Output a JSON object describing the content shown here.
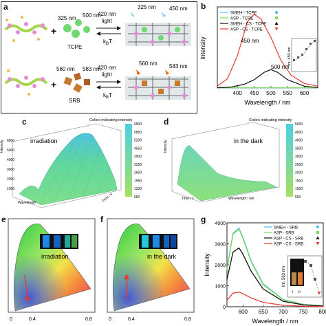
{
  "panels": {
    "a": {
      "letter": "a",
      "top_row": {
        "ex_label_1": "325 nm",
        "ex_label_2": "500 nm",
        "arrow_top": "420 nm",
        "arrow_top_sub": "light",
        "arrow_bottom": "k",
        "arrow_bottom_sub": "B",
        "arrow_bottom_tail": "T",
        "molecule": "TCPE",
        "right_label_1": "325 nm",
        "right_label_2": "450 nm"
      },
      "bottom_row": {
        "ex_label_1": "560 nm",
        "ex_label_2": "583 nm",
        "arrow_top": "420 nm",
        "arrow_top_sub": "light",
        "arrow_bottom": "k",
        "arrow_bottom_sub": "B",
        "arrow_bottom_tail": "T",
        "molecule": "SRB",
        "right_label_1": "560 nm",
        "right_label_2": "583 nm"
      }
    },
    "c": {
      "letter": "c",
      "colorbar_title": "Colors indicating intensity",
      "annotation": "irradiation"
    },
    "d": {
      "letter": "d",
      "colorbar_title": "Colors indicating intensity",
      "annotation": "in the dark"
    },
    "e": {
      "letter": "e",
      "annotation": "irradiation"
    },
    "f": {
      "letter": "f",
      "annotation": "in the dark"
    }
  },
  "chart_data": [
    {
      "panel": "b",
      "type": "line",
      "xlabel": "Wavelength / nm",
      "ylabel": "Intensity",
      "xlim": [
        340,
        640
      ],
      "x_ticks": [
        400,
        450,
        500,
        550,
        600
      ],
      "series": [
        {
          "name": "SMEH - TCPE",
          "color": "#4fc3f7",
          "marker": "circle",
          "x": [
            340,
            400,
            450,
            500,
            550,
            600,
            640
          ],
          "y": [
            0.2,
            0.2,
            0.2,
            0.2,
            0.2,
            0.2,
            0.2
          ]
        },
        {
          "name": "ASP - TCPE",
          "color": "#7ed957",
          "marker": "square",
          "x": [
            340,
            400,
            450,
            500,
            550,
            600,
            640
          ],
          "y": [
            0.3,
            0.3,
            0.3,
            0.3,
            0.3,
            0.3,
            0.3
          ]
        },
        {
          "name": "SMEH - CS - TCPE",
          "color": "#111111",
          "marker": "triangle-up",
          "x": [
            340,
            380,
            420,
            450,
            480,
            500,
            520,
            550,
            600,
            640
          ],
          "y": [
            0.3,
            1,
            4,
            9,
            17,
            20,
            17,
            9,
            2,
            0.5
          ]
        },
        {
          "name": "ASP - CS - TCPE",
          "color": "#e53935",
          "marker": "triangle-down",
          "x": [
            340,
            370,
            400,
            430,
            450,
            470,
            500,
            530,
            560,
            600,
            640
          ],
          "y": [
            2,
            10,
            35,
            72,
            80,
            75,
            55,
            30,
            14,
            5,
            2
          ]
        }
      ],
      "annotations": [
        "450 nm",
        "500 nm"
      ],
      "inset": {
        "ylabel": "Int. 450 nm",
        "values": [
          0.3,
          0.4,
          0.5,
          0.7,
          0.9,
          1.0
        ]
      }
    },
    {
      "panel": "c",
      "type": "surface",
      "axes": [
        "Wavelength",
        "Time / s",
        "Intensity"
      ],
      "z_ticks": [
        1000,
        2000,
        3000,
        4000,
        5000,
        6000
      ],
      "colorbar_ticks": [
        650.0,
        1300,
        1950,
        2600,
        3250,
        3900,
        4550,
        5200,
        5850,
        6500
      ]
    },
    {
      "panel": "d",
      "type": "surface",
      "axes": [
        "Wavelength / nm",
        "Time / s",
        "Intensity"
      ],
      "colorbar_ticks": [
        500.0,
        1000,
        1500,
        2000,
        2500,
        3000,
        3500,
        4000,
        4500,
        5000
      ]
    },
    {
      "panel": "g",
      "type": "line",
      "xlabel": "Wavelength / nm",
      "ylabel": "Intensity",
      "xlim": [
        560,
        800
      ],
      "ylim": [
        0,
        4000
      ],
      "x_ticks": [
        600,
        650,
        700,
        750,
        800
      ],
      "y_ticks": [
        0,
        1000,
        2000,
        3000,
        4000
      ],
      "series": [
        {
          "name": "SMEH - SRB",
          "color": "#4fc3f7",
          "marker": "circle",
          "x": [
            560,
            575,
            590,
            600,
            620,
            650,
            700,
            750,
            800
          ],
          "y": [
            1800,
            3500,
            3750,
            3300,
            2200,
            1100,
            350,
            120,
            40
          ]
        },
        {
          "name": "ASP - SRB",
          "color": "#7ed957",
          "marker": "square",
          "x": [
            560,
            575,
            590,
            600,
            620,
            650,
            700,
            750,
            800
          ],
          "y": [
            1750,
            3450,
            3700,
            3250,
            2150,
            1050,
            330,
            110,
            40
          ]
        },
        {
          "name": "ASP - CS - SRB",
          "color": "#111111",
          "marker": "triangle-up",
          "x": [
            560,
            575,
            590,
            600,
            620,
            650,
            700,
            750,
            800
          ],
          "y": [
            1300,
            2600,
            2800,
            2500,
            1700,
            850,
            260,
            90,
            30
          ]
        },
        {
          "name": "ASP - CS - SRB",
          "color": "#e53935",
          "marker": "triangle-down",
          "x": [
            560,
            575,
            590,
            600,
            620,
            650,
            700,
            750,
            800
          ],
          "y": [
            300,
            650,
            700,
            620,
            420,
            210,
            70,
            25,
            10
          ]
        }
      ],
      "inset": {
        "ylabel": "Int. 583 nm",
        "vial_labels": [
          "i",
          "ii"
        ]
      }
    }
  ]
}
